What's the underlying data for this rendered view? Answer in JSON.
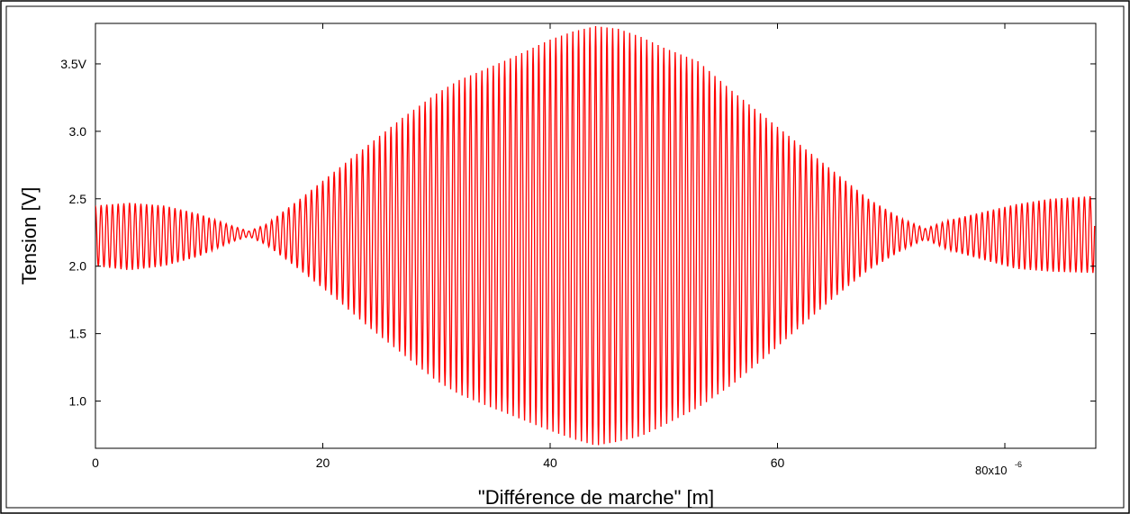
{
  "chart_data": {
    "type": "line",
    "title": "",
    "xlabel": "\"Différence de marche\" [m]",
    "ylabel": "Tension [V]",
    "xlim": [
      0,
      88
    ],
    "ylim": [
      0.65,
      3.8
    ],
    "x_unit_multiplier_label": "80x10",
    "x_unit_exponent": "-6",
    "x_ticks": [
      {
        "value": 0,
        "label": "0"
      },
      {
        "value": 20,
        "label": "20"
      },
      {
        "value": 40,
        "label": "40"
      },
      {
        "value": 60,
        "label": "60"
      }
    ],
    "y_ticks": [
      {
        "value": 1.0,
        "label": "1.0"
      },
      {
        "value": 1.5,
        "label": "1.5"
      },
      {
        "value": 2.0,
        "label": "2.0"
      },
      {
        "value": 2.5,
        "label": "2.5"
      },
      {
        "value": 3.0,
        "label": "3.0"
      },
      {
        "value": 3.5,
        "label": "3.5V"
      }
    ],
    "grid": false,
    "legend": "none",
    "series": [
      {
        "color": "#ff0000",
        "fringe_period": 0.5,
        "envelope": {
          "x": [
            0,
            3,
            6,
            9,
            12,
            13.5,
            15,
            18,
            21,
            24,
            27,
            30,
            32,
            34,
            37,
            40,
            42,
            44,
            46,
            48,
            50,
            53,
            56,
            59,
            62,
            65,
            68,
            71,
            73,
            75,
            78,
            81,
            84,
            87.9
          ],
          "upper": [
            2.45,
            2.47,
            2.45,
            2.39,
            2.3,
            2.26,
            2.31,
            2.5,
            2.7,
            2.9,
            3.1,
            3.28,
            3.38,
            3.45,
            3.56,
            3.68,
            3.74,
            3.78,
            3.76,
            3.7,
            3.62,
            3.52,
            3.3,
            3.1,
            2.9,
            2.7,
            2.5,
            2.35,
            2.28,
            2.34,
            2.4,
            2.46,
            2.5,
            2.52
          ],
          "lower": [
            2.0,
            1.97,
            2.0,
            2.07,
            2.18,
            2.22,
            2.16,
            1.97,
            1.77,
            1.55,
            1.35,
            1.15,
            1.05,
            0.98,
            0.88,
            0.78,
            0.72,
            0.67,
            0.7,
            0.74,
            0.82,
            0.95,
            1.12,
            1.33,
            1.55,
            1.77,
            1.97,
            2.12,
            2.2,
            2.12,
            2.05,
            1.98,
            1.96,
            1.95
          ]
        }
      }
    ]
  }
}
